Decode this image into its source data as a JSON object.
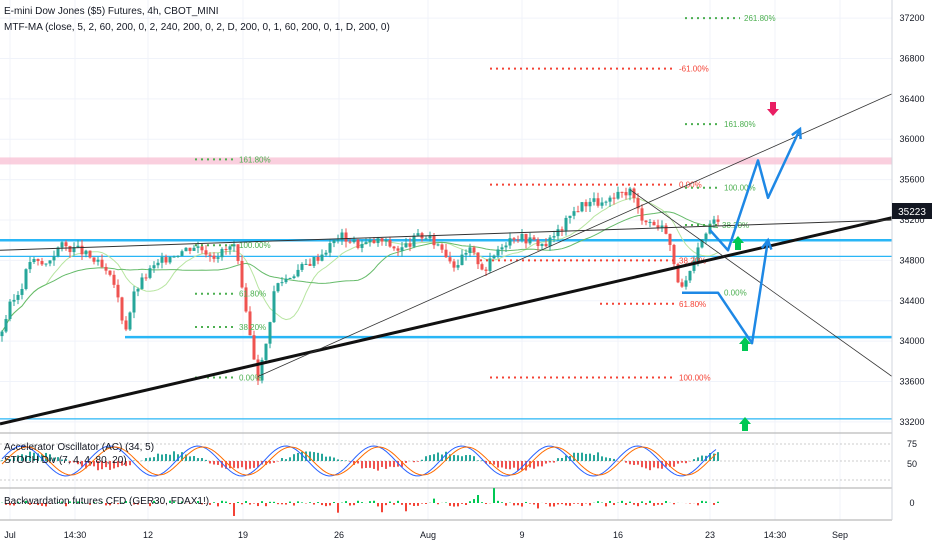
{
  "header": {
    "title": "E-mini Dow Jones ($5) Futures, 4h, CBOT_MINI",
    "indicator": "MTF-MA (close, 5, 2, 60, 200, 0, 2, 240, 200, 0, 2, D, 200, 0, 1, 60, 200, 0, 1, D, 200, 0)"
  },
  "panes": {
    "ac_label": "Accelerator Oscillator (AC) (34, 5)",
    "stoch_label": "STOCH Div (7, 4, 4, 80, 20)",
    "backwardation_label": "Backwardation futures CFD (GER30, FDAX1!)"
  },
  "price_badge": {
    "value": "35223",
    "color": "#131722"
  },
  "colors": {
    "up": "#26a69a",
    "down": "#ef5350",
    "ma_fast": "#b7e5a0",
    "ma_slow": "#66bb6a",
    "fib_green": "#4caf50",
    "fib_red": "#f44336",
    "horizontal_blue": "#29b6f6",
    "projection_blue": "#1e88e5",
    "trend_black": "#111111",
    "arrow_green": "#00c853",
    "arrow_pink": "#e91e63"
  },
  "chart_data": {
    "type": "candlestick",
    "symbol": "E-mini Dow Jones ($5) Futures",
    "timeframe": "4h",
    "y_axis": {
      "range": [
        33100,
        37300
      ],
      "ticks": [
        37200,
        36800,
        36400,
        36000,
        35600,
        35200,
        34800,
        34400,
        34000,
        33600,
        33200
      ]
    },
    "x_axis": {
      "ticks": [
        "Jul",
        "14:30",
        "12",
        "19",
        "26",
        "Aug",
        "9",
        "16",
        "23",
        "14:30",
        "Sep"
      ]
    },
    "ohlc_path": [
      [
        0,
        34050
      ],
      [
        10,
        34350
      ],
      [
        20,
        34500
      ],
      [
        30,
        34800
      ],
      [
        45,
        34750
      ],
      [
        60,
        34950
      ],
      [
        80,
        34900
      ],
      [
        100,
        34750
      ],
      [
        115,
        34550
      ],
      [
        125,
        34100
      ],
      [
        135,
        34500
      ],
      [
        150,
        34700
      ],
      [
        170,
        34850
      ],
      [
        195,
        34950
      ],
      [
        215,
        34850
      ],
      [
        235,
        34950
      ],
      [
        245,
        34300
      ],
      [
        258,
        33650
      ],
      [
        265,
        33900
      ],
      [
        275,
        34550
      ],
      [
        290,
        34650
      ],
      [
        305,
        34750
      ],
      [
        320,
        34850
      ],
      [
        340,
        35050
      ],
      [
        360,
        34950
      ],
      [
        380,
        35000
      ],
      [
        400,
        34900
      ],
      [
        420,
        35050
      ],
      [
        440,
        34950
      ],
      [
        455,
        34750
      ],
      [
        470,
        34900
      ],
      [
        485,
        34700
      ],
      [
        500,
        34950
      ],
      [
        515,
        35050
      ],
      [
        530,
        35000
      ],
      [
        545,
        34950
      ],
      [
        560,
        35100
      ],
      [
        575,
        35300
      ],
      [
        590,
        35400
      ],
      [
        605,
        35350
      ],
      [
        620,
        35450
      ],
      [
        630,
        35500
      ],
      [
        640,
        35250
      ],
      [
        655,
        35150
      ],
      [
        668,
        35100
      ],
      [
        672,
        34800
      ],
      [
        682,
        34500
      ],
      [
        692,
        34700
      ],
      [
        700,
        34950
      ],
      [
        710,
        35150
      ],
      [
        718,
        35223
      ]
    ],
    "fib_levels": [
      {
        "label": "261.80%",
        "value": 37200,
        "x1": 685,
        "x2": 740,
        "color": "green"
      },
      {
        "label": "-61.00%",
        "value": 36700,
        "x1": 490,
        "x2": 675,
        "color": "red"
      },
      {
        "label": "161.80%",
        "value": 36150,
        "x1": 685,
        "x2": 720,
        "color": "green"
      },
      {
        "label": "161.80%",
        "value": 35800,
        "x1": 195,
        "x2": 235,
        "color": "green"
      },
      {
        "label": "0.00%",
        "value": 35550,
        "x1": 490,
        "x2": 675,
        "color": "red"
      },
      {
        "label": "100.00%",
        "value": 35520,
        "x1": 685,
        "x2": 720,
        "color": "green"
      },
      {
        "label": "38.20%",
        "value": 35150,
        "x1": 685,
        "x2": 718,
        "color": "green"
      },
      {
        "label": "100.00%",
        "value": 34950,
        "x1": 195,
        "x2": 235,
        "color": "green"
      },
      {
        "label": "38.20%",
        "value": 34800,
        "x1": 480,
        "x2": 675,
        "color": "red"
      },
      {
        "label": "0.00%",
        "value": 34480,
        "x1": 685,
        "x2": 720,
        "color": "green"
      },
      {
        "label": "61.80%",
        "value": 34470,
        "x1": 195,
        "x2": 235,
        "color": "green"
      },
      {
        "label": "61.80%",
        "value": 34370,
        "x1": 600,
        "x2": 675,
        "color": "red"
      },
      {
        "label": "38.20%",
        "value": 34140,
        "x1": 195,
        "x2": 235,
        "color": "green"
      },
      {
        "label": "0.00%",
        "value": 33640,
        "x1": 195,
        "x2": 235,
        "color": "green"
      },
      {
        "label": "100.00%",
        "value": 33640,
        "x1": 490,
        "x2": 675,
        "color": "red"
      }
    ],
    "horizontal_levels": [
      35000,
      34840,
      34040,
      33230
    ],
    "pink_zone": 35790,
    "ac_series_seed": 7,
    "backwardation_seed": 11
  }
}
